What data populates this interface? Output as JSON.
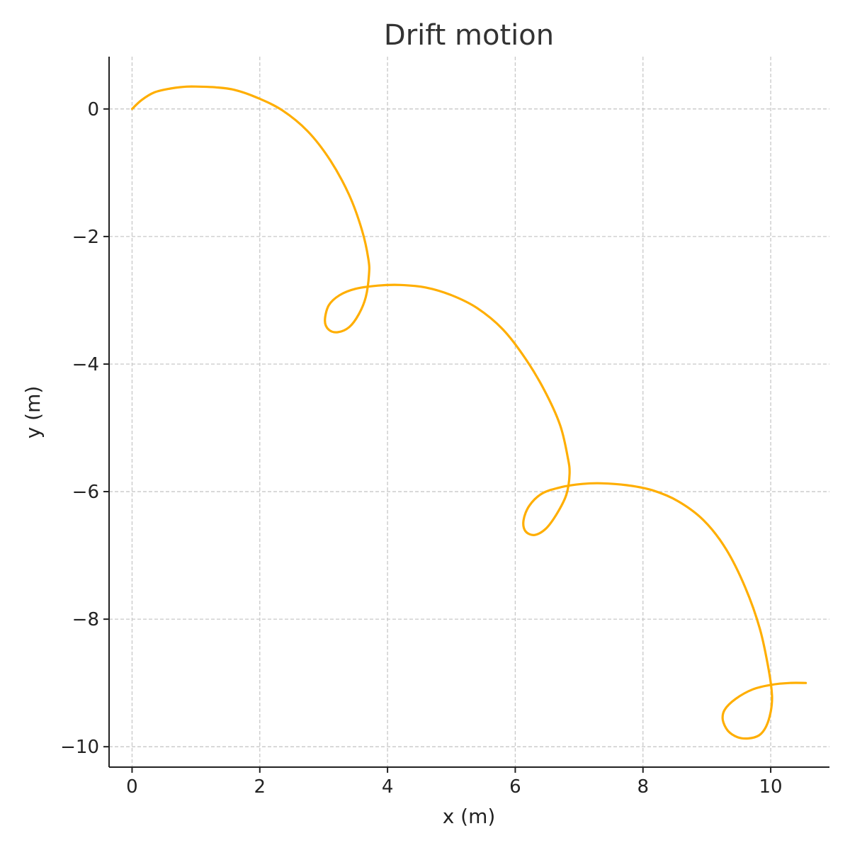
{
  "chart_data": {
    "type": "line",
    "title": "Drift motion",
    "xlabel": "x (m)",
    "ylabel": "y (m)",
    "xlim": [
      -0.36,
      10.92
    ],
    "ylim": [
      -10.32,
      0.82
    ],
    "xticks": [
      0,
      2,
      4,
      6,
      8,
      10
    ],
    "yticks": [
      0,
      -2,
      -4,
      -6,
      -8,
      -10
    ],
    "xtick_labels": [
      "0",
      "2",
      "4",
      "6",
      "8",
      "10"
    ],
    "ytick_labels": [
      "0",
      "−2",
      "−4",
      "−6",
      "−8",
      "−10"
    ],
    "grid": true,
    "color": "#ffae00",
    "series": [
      {
        "name": "",
        "x": [
          0.0,
          0.15,
          0.35,
          0.6,
          0.85,
          1.05,
          1.3,
          1.6,
          1.95,
          2.35,
          2.75,
          3.1,
          3.4,
          3.6,
          3.7,
          3.71,
          3.66,
          3.55,
          3.4,
          3.22,
          3.08,
          3.02,
          3.08,
          3.25,
          3.5,
          3.85,
          4.2,
          4.6,
          5.0,
          5.4,
          5.8,
          6.15,
          6.45,
          6.7,
          6.82,
          6.85,
          6.8,
          6.65,
          6.48,
          6.3,
          6.16,
          6.13,
          6.22,
          6.42,
          6.72,
          7.05,
          7.35,
          7.75,
          8.15,
          8.55,
          8.95,
          9.3,
          9.6,
          9.83,
          9.97,
          10.02,
          10.0,
          9.93,
          9.82,
          9.65,
          9.48,
          9.33,
          9.25,
          9.28,
          9.45,
          9.72,
          10.0,
          10.3,
          10.55
        ],
        "y": [
          0.0,
          0.14,
          0.26,
          0.32,
          0.35,
          0.35,
          0.34,
          0.3,
          0.18,
          -0.02,
          -0.35,
          -0.8,
          -1.35,
          -1.9,
          -2.35,
          -2.6,
          -2.95,
          -3.22,
          -3.42,
          -3.5,
          -3.46,
          -3.32,
          -3.08,
          -2.92,
          -2.82,
          -2.77,
          -2.76,
          -2.8,
          -2.92,
          -3.12,
          -3.45,
          -3.9,
          -4.4,
          -4.95,
          -5.45,
          -5.72,
          -6.05,
          -6.35,
          -6.58,
          -6.68,
          -6.62,
          -6.45,
          -6.22,
          -6.03,
          -5.93,
          -5.88,
          -5.87,
          -5.9,
          -5.98,
          -6.15,
          -6.45,
          -6.9,
          -7.5,
          -8.15,
          -8.8,
          -9.2,
          -9.45,
          -9.68,
          -9.82,
          -9.87,
          -9.85,
          -9.75,
          -9.58,
          -9.42,
          -9.25,
          -9.1,
          -9.03,
          -9.0,
          -9.0
        ]
      }
    ]
  }
}
